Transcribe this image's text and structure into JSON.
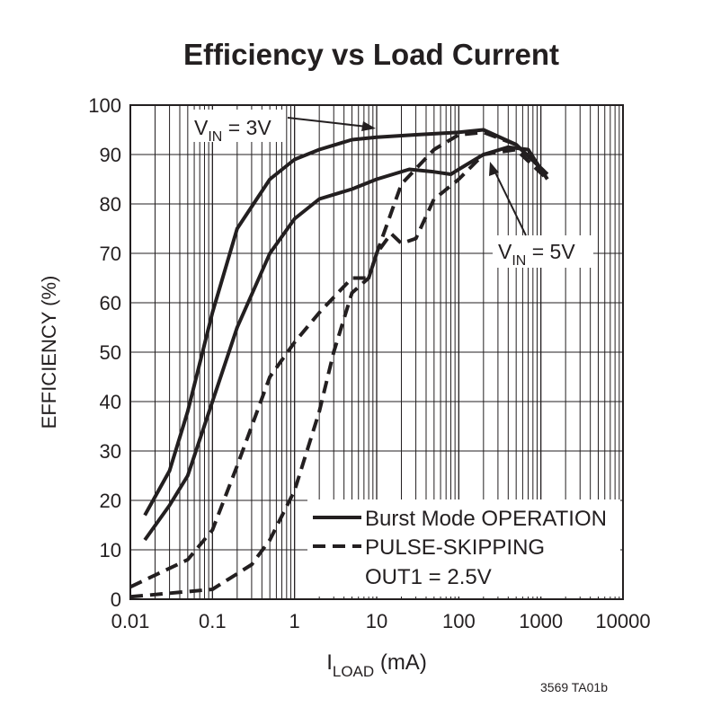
{
  "chart_data": {
    "type": "line",
    "title": "Efficiency vs Load Current",
    "x_label": {
      "main": "I",
      "sub": "LOAD",
      "rest": " (mA)"
    },
    "y_label": "EFFICIENCY (%)",
    "log_x": true,
    "grid": true,
    "xlim": [
      0.01,
      10000
    ],
    "xticks": [
      0.01,
      0.1,
      1,
      10,
      100,
      1000,
      10000
    ],
    "ylim": [
      0,
      100
    ],
    "yticks": [
      0,
      10,
      20,
      30,
      40,
      50,
      60,
      70,
      80,
      90,
      100
    ],
    "series": [
      {
        "name": "Burst Mode OPERATION",
        "color": "#231f20",
        "dash": "solid",
        "curves": [
          {
            "x": [
              0.015,
              0.03,
              0.05,
              0.1,
              0.2,
              0.5,
              1,
              2,
              5,
              10,
              30,
              100,
              200,
              500,
              1200
            ],
            "values": [
              17,
              26,
              38,
              58,
              75,
              85,
              89,
              91,
              93,
              93.5,
              94,
              94.5,
              95,
              92,
              86
            ]
          },
          {
            "x": [
              0.015,
              0.03,
              0.05,
              0.1,
              0.2,
              0.5,
              1,
              2,
              5,
              10,
              25,
              50,
              80,
              100,
              200,
              400,
              700,
              1200
            ],
            "values": [
              12,
              19,
              25,
              40,
              55,
              70,
              77,
              81,
              83,
              85,
              87,
              86.5,
              86,
              87,
              90,
              91.5,
              91,
              85
            ]
          }
        ]
      },
      {
        "name": "PULSE-SKIPPING",
        "color": "#231f20",
        "dash": "dashed",
        "curves": [
          {
            "x": [
              0.01,
              0.05,
              0.1,
              0.2,
              0.5,
              1,
              2,
              5,
              8,
              10,
              20,
              50,
              100,
              200,
              500,
              1200
            ],
            "values": [
              2.5,
              8,
              14,
              27,
              45,
              52,
              58,
              65,
              65,
              70,
              84,
              91,
              94,
              94.5,
              92,
              86
            ]
          },
          {
            "x": [
              0.01,
              0.1,
              0.3,
              0.5,
              1,
              2,
              3,
              5,
              8,
              10,
              15,
              20,
              30,
              50,
              60,
              100,
              200,
              500,
              1200
            ],
            "values": [
              0.5,
              2,
              7,
              12,
              22,
              38,
              50,
              62,
              65,
              70,
              74,
              72,
              73,
              81,
              82,
              85,
              90,
              91,
              85
            ]
          }
        ]
      }
    ],
    "annotations": [
      {
        "main": "V",
        "sub": "IN",
        "rest": " = 3V"
      },
      {
        "main": "V",
        "sub": "IN",
        "rest": " = 5V"
      }
    ],
    "condition": "OUT1 = 2.5V",
    "footnote": "3569 TA01b"
  }
}
